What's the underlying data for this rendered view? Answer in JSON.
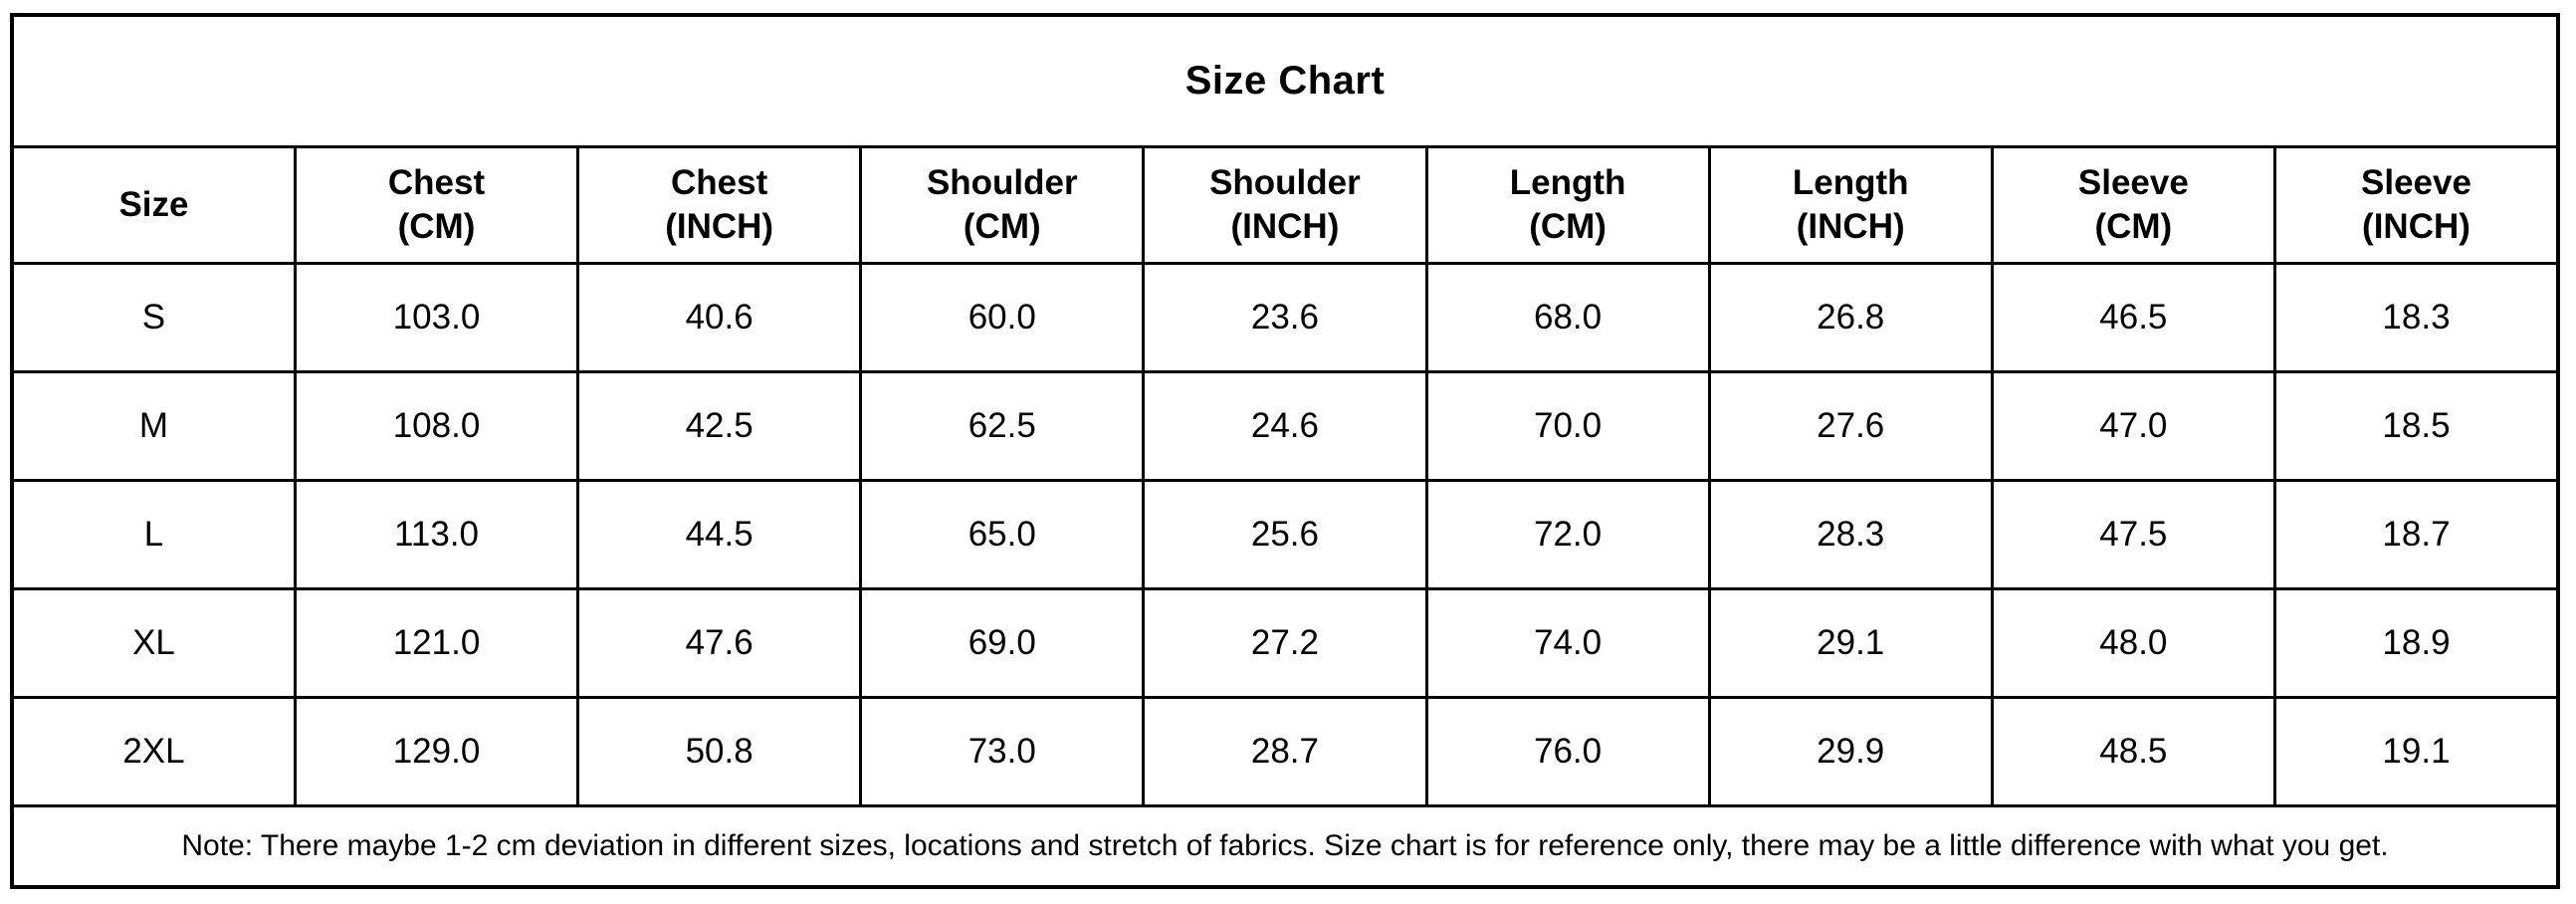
{
  "chart_data": {
    "type": "table",
    "title": "Size Chart",
    "columns": [
      {
        "label": "Size",
        "sub": ""
      },
      {
        "label": "Chest",
        "sub": "(CM)"
      },
      {
        "label": "Chest",
        "sub": "(INCH)"
      },
      {
        "label": "Shoulder",
        "sub": "(CM)"
      },
      {
        "label": "Shoulder",
        "sub": "(INCH)"
      },
      {
        "label": "Length",
        "sub": "(CM)"
      },
      {
        "label": "Length",
        "sub": "(INCH)"
      },
      {
        "label": "Sleeve",
        "sub": "(CM)"
      },
      {
        "label": "Sleeve",
        "sub": "(INCH)"
      }
    ],
    "rows": [
      {
        "size": "S",
        "values": [
          "103.0",
          "40.6",
          "60.0",
          "23.6",
          "68.0",
          "26.8",
          "46.5",
          "18.3"
        ]
      },
      {
        "size": "M",
        "values": [
          "108.0",
          "42.5",
          "62.5",
          "24.6",
          "70.0",
          "27.6",
          "47.0",
          "18.5"
        ]
      },
      {
        "size": "L",
        "values": [
          "113.0",
          "44.5",
          "65.0",
          "25.6",
          "72.0",
          "28.3",
          "47.5",
          "18.7"
        ]
      },
      {
        "size": "XL",
        "values": [
          "121.0",
          "47.6",
          "69.0",
          "27.2",
          "74.0",
          "29.1",
          "48.0",
          "18.9"
        ]
      },
      {
        "size": "2XL",
        "values": [
          "129.0",
          "50.8",
          "73.0",
          "28.7",
          "76.0",
          "29.9",
          "48.5",
          "19.1"
        ]
      }
    ],
    "note": "Note: There maybe 1-2 cm deviation in different sizes, locations and stretch of fabrics. Size chart is for reference only, there may be a little difference with what you get.",
    "layout": {
      "grid": "on",
      "border_color": "#000000",
      "background_color": "#ffffff",
      "text_color": "#000000"
    }
  }
}
